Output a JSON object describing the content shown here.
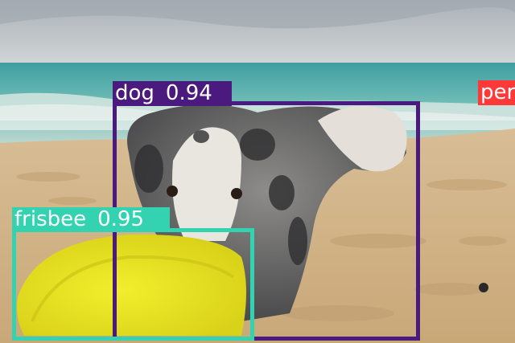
{
  "detections": [
    {
      "id": "dog",
      "class_label": "dog",
      "confidence": "0.94",
      "color": "#4b1a7e"
    },
    {
      "id": "frisbee",
      "class_label": "frisbee",
      "confidence": "0.95",
      "color": "#33d3b2"
    },
    {
      "id": "person",
      "class_label": "per",
      "color": "#ff3838"
    }
  ]
}
